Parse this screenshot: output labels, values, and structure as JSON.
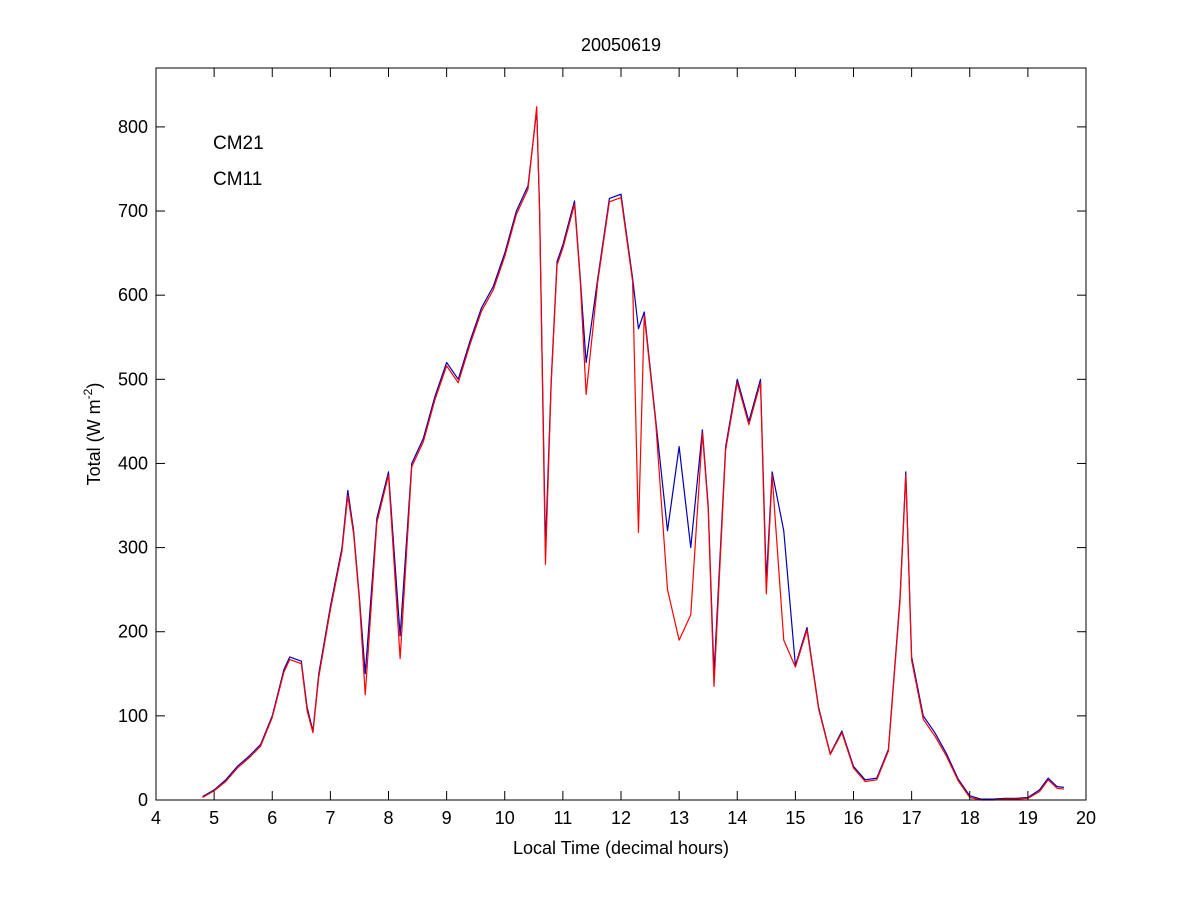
{
  "chart_data": {
    "type": "line",
    "title": "20050619",
    "xlabel": "Local Time (decimal hours)",
    "ylabel": {
      "main": "Total (W m",
      "superscript": "-2",
      "close": ")"
    },
    "xlim": [
      4,
      20
    ],
    "ylim": [
      0,
      870
    ],
    "xticks": [
      4,
      5,
      6,
      7,
      8,
      9,
      10,
      11,
      12,
      13,
      14,
      15,
      16,
      17,
      18,
      19,
      20
    ],
    "yticks": [
      0,
      100,
      200,
      300,
      400,
      500,
      600,
      700,
      800
    ],
    "grid": false,
    "box": true,
    "legend_position": "top-left",
    "series": [
      {
        "name": "CM21",
        "color": "#0000b4",
        "x": [
          4.8,
          5.0,
          5.2,
          5.4,
          5.6,
          5.8,
          6.0,
          6.2,
          6.3,
          6.5,
          6.6,
          6.7,
          6.8,
          7.0,
          7.2,
          7.3,
          7.4,
          7.5,
          7.6,
          7.8,
          8.0,
          8.2,
          8.4,
          8.6,
          8.8,
          9.0,
          9.2,
          9.4,
          9.6,
          9.8,
          10.0,
          10.2,
          10.4,
          10.55,
          10.6,
          10.7,
          10.8,
          10.9,
          11.0,
          11.2,
          11.3,
          11.4,
          11.6,
          11.8,
          12.0,
          12.2,
          12.3,
          12.4,
          12.6,
          12.8,
          13.0,
          13.2,
          13.4,
          13.5,
          13.6,
          13.8,
          14.0,
          14.2,
          14.4,
          14.5,
          14.6,
          14.8,
          15.0,
          15.2,
          15.4,
          15.6,
          15.8,
          16.0,
          16.2,
          16.4,
          16.6,
          16.8,
          16.9,
          17.0,
          17.2,
          17.4,
          17.6,
          17.8,
          18.0,
          18.2,
          18.4,
          18.6,
          18.8,
          19.0,
          19.2,
          19.35,
          19.5,
          19.62
        ],
        "y": [
          4,
          12,
          24,
          40,
          52,
          66,
          100,
          155,
          170,
          165,
          110,
          82,
          150,
          230,
          300,
          368,
          320,
          240,
          150,
          335,
          390,
          195,
          400,
          430,
          480,
          520,
          500,
          545,
          585,
          610,
          650,
          700,
          730,
          820,
          700,
          300,
          500,
          640,
          660,
          712,
          620,
          520,
          620,
          715,
          720,
          620,
          560,
          580,
          450,
          320,
          420,
          300,
          440,
          350,
          150,
          420,
          500,
          450,
          500,
          260,
          390,
          320,
          160,
          205,
          110,
          55,
          82,
          40,
          24,
          26,
          60,
          240,
          390,
          170,
          100,
          80,
          55,
          25,
          5,
          1,
          1,
          2,
          2,
          3,
          12,
          26,
          16,
          15
        ]
      },
      {
        "name": "CM11",
        "color": "#ff0000",
        "x": [
          4.8,
          5.0,
          5.2,
          5.4,
          5.6,
          5.8,
          6.0,
          6.2,
          6.3,
          6.5,
          6.6,
          6.7,
          6.8,
          7.0,
          7.2,
          7.3,
          7.4,
          7.5,
          7.6,
          7.8,
          8.0,
          8.2,
          8.4,
          8.6,
          8.8,
          9.0,
          9.2,
          9.4,
          9.6,
          9.8,
          10.0,
          10.2,
          10.4,
          10.55,
          10.6,
          10.7,
          10.8,
          10.9,
          11.0,
          11.2,
          11.3,
          11.4,
          11.6,
          11.8,
          12.0,
          12.2,
          12.3,
          12.4,
          12.6,
          12.8,
          13.0,
          13.2,
          13.4,
          13.5,
          13.6,
          13.8,
          14.0,
          14.2,
          14.4,
          14.5,
          14.6,
          14.8,
          15.0,
          15.2,
          15.4,
          15.6,
          15.8,
          16.0,
          16.2,
          16.4,
          16.6,
          16.8,
          16.9,
          17.0,
          17.2,
          17.4,
          17.6,
          17.8,
          18.0,
          18.2,
          18.4,
          18.6,
          18.8,
          19.0,
          19.2,
          19.35,
          19.5,
          19.62
        ],
        "y": [
          3,
          11,
          22,
          38,
          50,
          64,
          98,
          152,
          167,
          162,
          106,
          80,
          146,
          226,
          296,
          362,
          316,
          236,
          125,
          330,
          386,
          168,
          396,
          426,
          476,
          516,
          496,
          541,
          581,
          606,
          646,
          696,
          726,
          824,
          696,
          280,
          496,
          636,
          656,
          708,
          616,
          482,
          616,
          711,
          716,
          616,
          318,
          576,
          446,
          250,
          190,
          220,
          436,
          346,
          135,
          416,
          496,
          446,
          496,
          245,
          386,
          190,
          158,
          202,
          108,
          54,
          80,
          38,
          22,
          24,
          58,
          236,
          386,
          166,
          96,
          76,
          52,
          23,
          3,
          0,
          0,
          1,
          1,
          2,
          10,
          24,
          14,
          13
        ]
      }
    ]
  }
}
